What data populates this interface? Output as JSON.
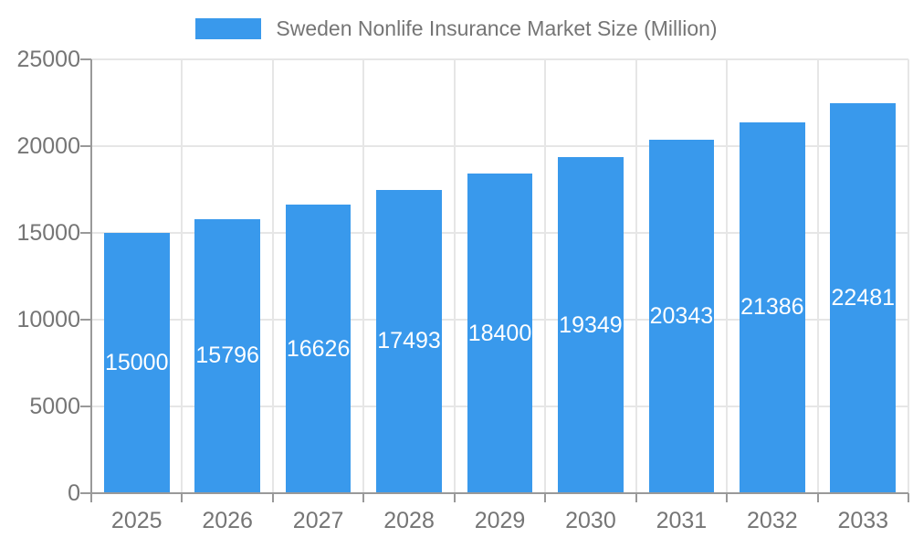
{
  "chart_data": {
    "type": "bar",
    "title": "Sweden Nonlife Insurance Market Size (Million)",
    "categories": [
      "2025",
      "2026",
      "2027",
      "2028",
      "2029",
      "2030",
      "2031",
      "2032",
      "2033"
    ],
    "values": [
      15000,
      15796,
      16626,
      17493,
      18400,
      19349,
      20343,
      21386,
      22481
    ],
    "series": [
      {
        "name": "Sweden Nonlife Insurance Market Size (Million)",
        "values": [
          15000,
          15796,
          16626,
          17493,
          18400,
          19349,
          20343,
          21386,
          22481
        ]
      }
    ],
    "xlabel": "",
    "ylabel": "",
    "ylim": [
      0,
      25000
    ],
    "yticks": [
      0,
      5000,
      10000,
      15000,
      20000,
      25000
    ],
    "grid": true,
    "legend_position": "top-center",
    "bar_labels_shown": true,
    "bar_label_placement": "center-inside",
    "colors": {
      "bar": "#3999ec",
      "grid": "#e6e6e6",
      "axis": "#999999",
      "text": "#757575",
      "bar_label": "#ffffff",
      "background": "#ffffff"
    }
  }
}
